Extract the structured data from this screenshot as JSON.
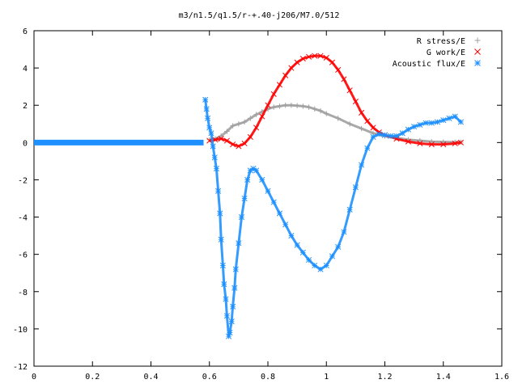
{
  "chart_data": {
    "type": "scatter",
    "title": "m3/n1.5/q1.5/r-+.40-j206/M7.0/512",
    "xlabel": "",
    "ylabel": "",
    "xlim": [
      0,
      1.6
    ],
    "ylim": [
      -12,
      6
    ],
    "x_ticks": [
      "0",
      "0.2",
      "0.4",
      "0.6",
      "0.8",
      "1",
      "1.2",
      "1.4",
      "1.6"
    ],
    "y_ticks": [
      "6",
      "4",
      "2",
      "0",
      "-2",
      "-4",
      "-6",
      "-8",
      "-10",
      "-12"
    ],
    "grid": false,
    "legend_position": "top-right",
    "series": [
      {
        "name": "R stress/E",
        "marker": "+",
        "color": "#a0a0a0",
        "x": [
          0.6,
          0.62,
          0.64,
          0.66,
          0.68,
          0.7,
          0.72,
          0.74,
          0.76,
          0.78,
          0.8,
          0.82,
          0.84,
          0.86,
          0.88,
          0.9,
          0.92,
          0.94,
          0.96,
          0.98,
          1.0,
          1.04,
          1.08,
          1.12,
          1.16,
          1.2,
          1.24,
          1.28,
          1.32,
          1.36,
          1.4,
          1.44,
          1.46
        ],
        "y": [
          0.15,
          0.2,
          0.35,
          0.6,
          0.9,
          1.0,
          1.1,
          1.3,
          1.5,
          1.65,
          1.8,
          1.9,
          1.95,
          2.0,
          2.0,
          1.98,
          1.95,
          1.9,
          1.8,
          1.7,
          1.55,
          1.3,
          1.0,
          0.75,
          0.5,
          0.35,
          0.25,
          0.15,
          0.1,
          0.05,
          0.03,
          0.02,
          0.02
        ]
      },
      {
        "name": "G work/E",
        "marker": "x",
        "color": "#ff0000",
        "x": [
          0.6,
          0.62,
          0.64,
          0.66,
          0.68,
          0.7,
          0.72,
          0.74,
          0.76,
          0.78,
          0.8,
          0.82,
          0.84,
          0.86,
          0.88,
          0.9,
          0.92,
          0.94,
          0.96,
          0.98,
          1.0,
          1.02,
          1.04,
          1.06,
          1.08,
          1.1,
          1.12,
          1.14,
          1.16,
          1.18,
          1.2,
          1.24,
          1.28,
          1.32,
          1.36,
          1.4,
          1.44,
          1.46
        ],
        "y": [
          0.1,
          0.15,
          0.2,
          0.1,
          -0.1,
          -0.2,
          -0.05,
          0.3,
          0.8,
          1.4,
          2.0,
          2.6,
          3.1,
          3.6,
          4.0,
          4.3,
          4.5,
          4.6,
          4.65,
          4.65,
          4.55,
          4.3,
          3.9,
          3.4,
          2.8,
          2.2,
          1.6,
          1.15,
          0.8,
          0.55,
          0.4,
          0.2,
          0.05,
          -0.05,
          -0.1,
          -0.1,
          -0.05,
          0.0
        ]
      },
      {
        "name": "Acoustic flux/E",
        "marker": "*",
        "color": "#1e90ff",
        "x": [
          0.586,
          0.59,
          0.594,
          0.6,
          0.606,
          0.612,
          0.618,
          0.624,
          0.63,
          0.636,
          0.64,
          0.646,
          0.65,
          0.656,
          0.66,
          0.666,
          0.67,
          0.676,
          0.68,
          0.686,
          0.69,
          0.7,
          0.71,
          0.72,
          0.73,
          0.74,
          0.75,
          0.76,
          0.78,
          0.8,
          0.82,
          0.84,
          0.86,
          0.88,
          0.9,
          0.92,
          0.94,
          0.96,
          0.98,
          1.0,
          1.02,
          1.04,
          1.06,
          1.08,
          1.1,
          1.12,
          1.14,
          1.16,
          1.18,
          1.2,
          1.22,
          1.24,
          1.26,
          1.28,
          1.3,
          1.32,
          1.34,
          1.36,
          1.38,
          1.4,
          1.42,
          1.44,
          1.46
        ],
        "y": [
          2.3,
          1.8,
          1.3,
          0.8,
          0.5,
          -0.2,
          -0.8,
          -1.4,
          -2.6,
          -3.8,
          -5.2,
          -6.6,
          -7.6,
          -8.4,
          -9.3,
          -10.4,
          -10.2,
          -9.6,
          -8.8,
          -7.8,
          -6.8,
          -5.4,
          -4.0,
          -3.0,
          -2.0,
          -1.5,
          -1.4,
          -1.5,
          -2.0,
          -2.6,
          -3.2,
          -3.8,
          -4.4,
          -5.0,
          -5.5,
          -5.9,
          -6.3,
          -6.6,
          -6.8,
          -6.6,
          -6.1,
          -5.6,
          -4.8,
          -3.6,
          -2.4,
          -1.2,
          -0.3,
          0.3,
          0.45,
          0.4,
          0.35,
          0.35,
          0.5,
          0.7,
          0.85,
          0.95,
          1.05,
          1.05,
          1.1,
          1.2,
          1.3,
          1.4,
          1.1
        ]
      }
    ],
    "flat_segments": [
      {
        "series": "Acoustic flux/E",
        "x": [
          0,
          0.58
        ],
        "y": 0
      }
    ]
  }
}
